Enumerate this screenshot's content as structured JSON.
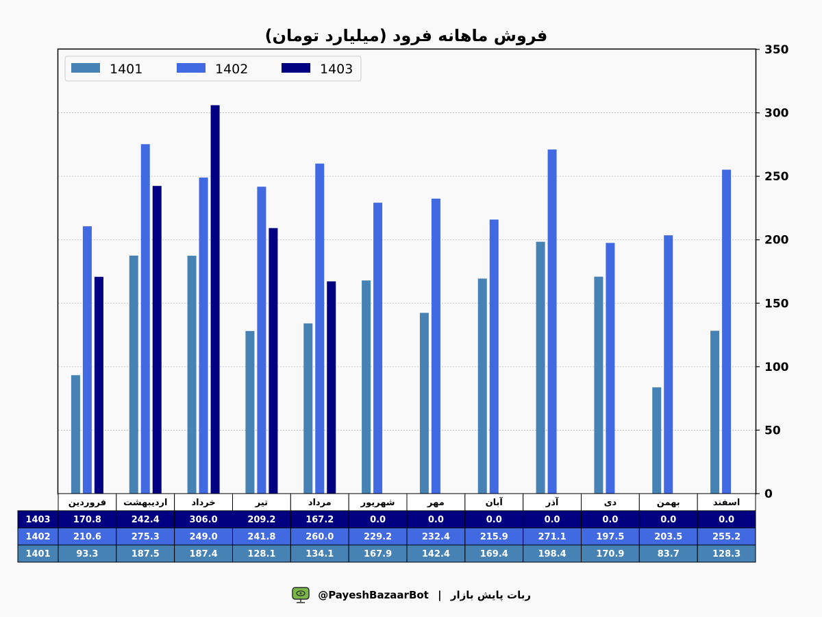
{
  "colors": {
    "1401": "#4682b4",
    "1402": "#4169e1",
    "1403": "#000080"
  },
  "chart_data": {
    "type": "bar",
    "title": "فروش ماهانه فرود (میلیارد تومان)",
    "xlabel": "",
    "ylabel": "",
    "ylim": [
      0,
      350
    ],
    "yticks": [
      0,
      50,
      100,
      150,
      200,
      250,
      300,
      350
    ],
    "grid": true,
    "legend_position": "top-left",
    "categories": [
      "فروردین",
      "اردیبهشت",
      "خرداد",
      "تیر",
      "مرداد",
      "شهریور",
      "مهر",
      "آبان",
      "آذر",
      "دی",
      "بهمن",
      "اسفند"
    ],
    "series": [
      {
        "name": "1401",
        "values": [
          93.3,
          187.5,
          187.4,
          128.1,
          134.1,
          167.9,
          142.4,
          169.4,
          198.4,
          170.9,
          83.7,
          128.3
        ]
      },
      {
        "name": "1402",
        "values": [
          210.6,
          275.3,
          249.0,
          241.8,
          260.0,
          229.2,
          232.4,
          215.9,
          271.1,
          197.5,
          203.5,
          255.2
        ]
      },
      {
        "name": "1403",
        "values": [
          170.8,
          242.4,
          306.0,
          209.2,
          167.2,
          0.0,
          0.0,
          0.0,
          0.0,
          0.0,
          0.0,
          0.0
        ]
      }
    ],
    "table_rows": [
      "1403",
      "1402",
      "1401"
    ]
  },
  "footer": {
    "handle": "@PayeshBazaarBot",
    "separator": "|",
    "label": "ربات پایش بازار",
    "logo_icon": "robot-icon"
  }
}
